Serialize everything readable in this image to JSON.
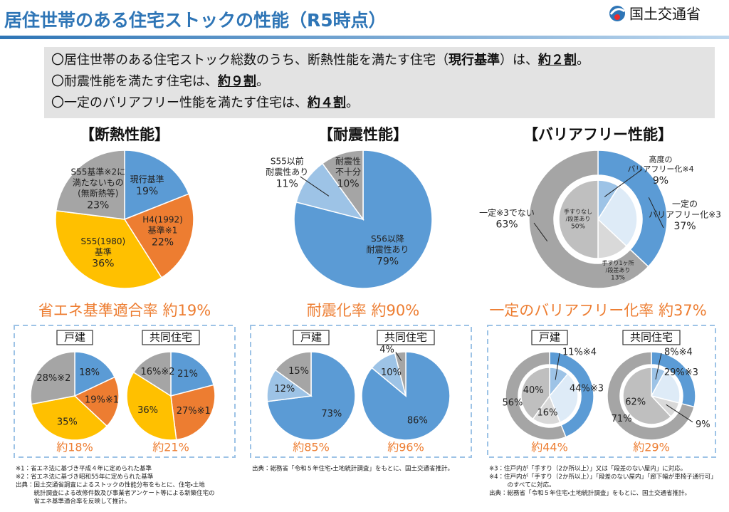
{
  "header": {
    "title": "居住世帯のある住宅ストックの性能（R5時点）",
    "org": "国土交通省"
  },
  "summary": [
    [
      "〇居住世帯のある住宅ストック総数のうち、断熱性能を満たす住宅（",
      "現行基準",
      "）は、",
      "約２割",
      "。"
    ],
    [
      "〇耐震性能を満たす住宅は、",
      "約９割",
      "。"
    ],
    [
      "〇一定のバリアフリー性能を満たす住宅は、",
      "約４割",
      "。"
    ]
  ],
  "sections": [
    {
      "title": "【断熱性能】",
      "overall": {
        "type": "pie",
        "categories": [
          [
            "現行基準"
          ],
          [
            "H4(1992)",
            "基準※1"
          ],
          [
            "S55(1980)",
            "基準"
          ],
          [
            "S55基準※2に",
            "満たないもの",
            "(無断熱等)"
          ]
        ],
        "values": [
          19,
          22,
          36,
          23
        ],
        "value_labels": [
          "19%",
          "22%",
          "36%",
          "23%"
        ],
        "colors": [
          "#5b9bd5",
          "#ed7d31",
          "#ffc000",
          "#a5a5a5"
        ]
      },
      "rate_title": "省エネ基準適合率 約19%",
      "breakdown": [
        {
          "type": "pie",
          "title": "戸建",
          "values": [
            18,
            19,
            35,
            28
          ],
          "value_labels": [
            "18%",
            "19%※1",
            "35%",
            "28%※2"
          ],
          "colors": [
            "#5b9bd5",
            "#ed7d31",
            "#ffc000",
            "#a5a5a5"
          ],
          "rate": "約18%"
        },
        {
          "type": "pie",
          "title": "共同住宅",
          "values": [
            21,
            27,
            36,
            16
          ],
          "value_labels": [
            "21%",
            "27%※1",
            "36%",
            "16%※2"
          ],
          "colors": [
            "#5b9bd5",
            "#ed7d31",
            "#ffc000",
            "#a5a5a5"
          ],
          "rate": "約21%"
        }
      ],
      "notes": [
        "※1：省エネ法に基づき平成４年に定められた基準",
        "※2：省エネ法に基づき昭和55年に定められた基準",
        "出典：国土交通省調査によるストックの性能分布をもとに、住宅・土地",
        "　　　統計調査による改修件数及び事業者アンケート等による新築住宅の",
        "　　　省エネ基準適合率を反映して推計。"
      ]
    },
    {
      "title": "【耐震性能】",
      "overall": {
        "type": "pie",
        "categories": [
          [
            "S56以降",
            "耐震性あり"
          ],
          [
            "S55以前",
            "耐震性あり"
          ],
          [
            "耐震性",
            "不十分"
          ]
        ],
        "values": [
          79,
          11,
          10
        ],
        "value_labels": [
          "79%",
          "11%",
          "10%"
        ],
        "colors": [
          "#5b9bd5",
          "#9dc3e6",
          "#a5a5a5"
        ]
      },
      "rate_title": "耐震化率 約90%",
      "breakdown": [
        {
          "type": "pie",
          "title": "戸建",
          "values": [
            73,
            12,
            15
          ],
          "value_labels": [
            "73%",
            "12%",
            "15%"
          ],
          "colors": [
            "#5b9bd5",
            "#9dc3e6",
            "#a5a5a5"
          ],
          "rate": "約85%"
        },
        {
          "type": "pie",
          "title": "共同住宅",
          "values": [
            86,
            10,
            4
          ],
          "value_labels": [
            "86%",
            "10%",
            "4%"
          ],
          "colors": [
            "#5b9bd5",
            "#9dc3e6",
            "#a5a5a5"
          ],
          "rate": "約96%"
        }
      ],
      "notes": [
        "出典：総務省「令和５年住宅・土地統計調査」をもとに、国土交通省推計。"
      ]
    },
    {
      "title": "【バリアフリー性能】",
      "overall": {
        "type": "donut",
        "outer": {
          "categories": [
            [
              "一定の",
              "バリアフリー化※3"
            ],
            [
              "一定※3でない"
            ]
          ],
          "values": [
            37,
            63
          ],
          "value_labels": [
            "37%",
            "63%"
          ],
          "colors": [
            "#5b9bd5",
            "#a5a5a5"
          ]
        },
        "inner": {
          "categories": [
            [
              "高度の",
              "バリアフリー化※4"
            ],
            null,
            [
              "手すり1ヶ所",
              "/段差あり"
            ],
            [
              "手すりなし",
              "/段差あり"
            ]
          ],
          "values": [
            9,
            28,
            13,
            50
          ],
          "value_labels": [
            "9%",
            null,
            "13%",
            "50%"
          ],
          "colors": [
            "#9dc3e6",
            "#deebf7",
            "#d9d9d9",
            "#bfbfbf"
          ]
        }
      },
      "rate_title": "一定のバリアフリー化率 約37%",
      "breakdown": [
        {
          "type": "donut",
          "title": "戸建",
          "rate": "約44%",
          "outer": {
            "values": [
              44,
              56
            ],
            "value_labels": [
              "44%※3",
              "56%"
            ],
            "colors": [
              "#5b9bd5",
              "#a5a5a5"
            ]
          },
          "inner": {
            "values": [
              11,
              33,
              16,
              40
            ],
            "value_labels": [
              "11%※4",
              null,
              "16%",
              "40%"
            ],
            "colors": [
              "#9dc3e6",
              "#deebf7",
              "#d9d9d9",
              "#bfbfbf"
            ]
          }
        },
        {
          "type": "donut",
          "title": "共同住宅",
          "rate": "約29%",
          "outer": {
            "values": [
              29,
              71
            ],
            "value_labels": [
              "29%※3",
              "71%"
            ],
            "colors": [
              "#5b9bd5",
              "#a5a5a5"
            ]
          },
          "inner": {
            "values": [
              8,
              21,
              9,
              62
            ],
            "value_labels": [
              "8%※4",
              null,
              "9%",
              "62%"
            ],
            "colors": [
              "#9dc3e6",
              "#deebf7",
              "#d9d9d9",
              "#bfbfbf"
            ]
          }
        }
      ],
      "notes": [
        "※3：住戸内が「手すり（2か所以上）」又は「段差のない屋内」に対応。",
        "※4：住戸内が「手すり（2か所以上）」「段差のない屋内」「廊下幅が車椅子通行可」",
        "　　　のすべてに対応。",
        "出典：総務省「令和５年住宅・土地統計調査」をもとに、国土交通省推計。"
      ]
    }
  ]
}
